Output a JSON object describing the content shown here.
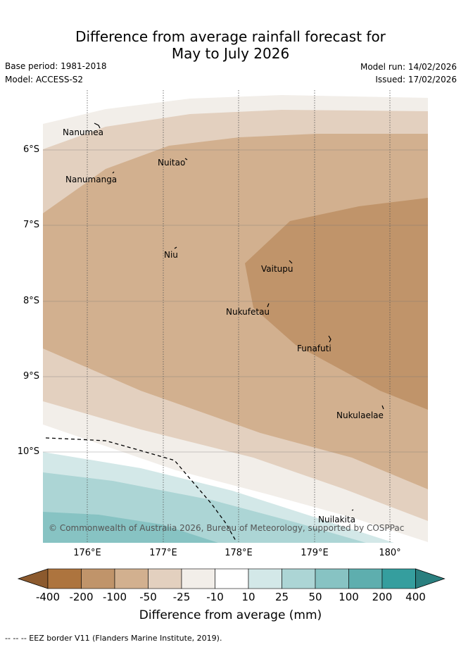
{
  "header": {
    "title_line1": "Difference from average rainfall forecast for",
    "title_line2": "May to July 2026",
    "base_period": "Base period: 1981-2018",
    "model": "Model: ACCESS-S2",
    "model_run": "Model run: 14/02/2026",
    "issued": "Issued: 17/02/2026"
  },
  "map": {
    "lat_labels": [
      "6°S",
      "7°S",
      "8°S",
      "9°S",
      "10°S"
    ],
    "lon_labels": [
      "176°E",
      "177°E",
      "178°E",
      "179°E",
      "180°"
    ],
    "islands": {
      "nanumea": "Nanumea",
      "nuitao": "Nuitao",
      "nanumanga": "Nanumanga",
      "niu": "Niu",
      "vaitupu": "Vaitupu",
      "nukufetau": "Nukufetau",
      "funafuti": "Funafuti",
      "nukulaelae": "Nukulaelae",
      "nuilakita": "Nuilakita"
    },
    "copyright": "© Commonwealth of Australia 2026, Bureau of Meteorology, supported by COSPPac"
  },
  "colorbar": {
    "ticks": [
      "-400",
      "-200",
      "-100",
      "-50",
      "-25",
      "-10",
      "10",
      "25",
      "50",
      "100",
      "200",
      "400"
    ],
    "colors": [
      "#8c5a2e",
      "#ad743e",
      "#c0946a",
      "#d2b08f",
      "#e3d0bf",
      "#f2eee9",
      "#ffffff",
      "#d3e8e8",
      "#acd5d5",
      "#87c3c3",
      "#5eaeae",
      "#359e9e",
      "#2a7f7f"
    ],
    "label": "Difference from average (mm)"
  },
  "footer": {
    "eez_note": "--  --  -- EEZ border V11 (Flanders Marine Institute, 2019)."
  }
}
